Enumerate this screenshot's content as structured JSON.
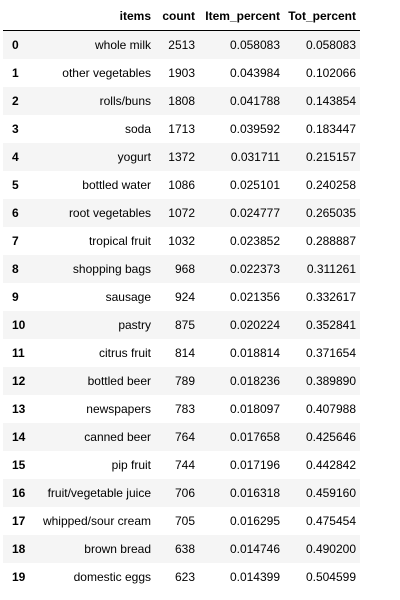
{
  "table": {
    "columns": [
      "",
      "items",
      "count",
      "Item_percent",
      "Tot_percent"
    ],
    "rows": [
      {
        "index": "0",
        "items": "whole milk",
        "count": "2513",
        "item_percent": "0.058083",
        "tot_percent": "0.058083"
      },
      {
        "index": "1",
        "items": "other vegetables",
        "count": "1903",
        "item_percent": "0.043984",
        "tot_percent": "0.102066"
      },
      {
        "index": "2",
        "items": "rolls/buns",
        "count": "1808",
        "item_percent": "0.041788",
        "tot_percent": "0.143854"
      },
      {
        "index": "3",
        "items": "soda",
        "count": "1713",
        "item_percent": "0.039592",
        "tot_percent": "0.183447"
      },
      {
        "index": "4",
        "items": "yogurt",
        "count": "1372",
        "item_percent": "0.031711",
        "tot_percent": "0.215157"
      },
      {
        "index": "5",
        "items": "bottled water",
        "count": "1086",
        "item_percent": "0.025101",
        "tot_percent": "0.240258"
      },
      {
        "index": "6",
        "items": "root vegetables",
        "count": "1072",
        "item_percent": "0.024777",
        "tot_percent": "0.265035"
      },
      {
        "index": "7",
        "items": "tropical fruit",
        "count": "1032",
        "item_percent": "0.023852",
        "tot_percent": "0.288887"
      },
      {
        "index": "8",
        "items": "shopping bags",
        "count": "968",
        "item_percent": "0.022373",
        "tot_percent": "0.311261"
      },
      {
        "index": "9",
        "items": "sausage",
        "count": "924",
        "item_percent": "0.021356",
        "tot_percent": "0.332617"
      },
      {
        "index": "10",
        "items": "pastry",
        "count": "875",
        "item_percent": "0.020224",
        "tot_percent": "0.352841"
      },
      {
        "index": "11",
        "items": "citrus fruit",
        "count": "814",
        "item_percent": "0.018814",
        "tot_percent": "0.371654"
      },
      {
        "index": "12",
        "items": "bottled beer",
        "count": "789",
        "item_percent": "0.018236",
        "tot_percent": "0.389890"
      },
      {
        "index": "13",
        "items": "newspapers",
        "count": "783",
        "item_percent": "0.018097",
        "tot_percent": "0.407988"
      },
      {
        "index": "14",
        "items": "canned beer",
        "count": "764",
        "item_percent": "0.017658",
        "tot_percent": "0.425646"
      },
      {
        "index": "15",
        "items": "pip fruit",
        "count": "744",
        "item_percent": "0.017196",
        "tot_percent": "0.442842"
      },
      {
        "index": "16",
        "items": "fruit/vegetable juice",
        "count": "706",
        "item_percent": "0.016318",
        "tot_percent": "0.459160"
      },
      {
        "index": "17",
        "items": "whipped/sour cream",
        "count": "705",
        "item_percent": "0.016295",
        "tot_percent": "0.475454"
      },
      {
        "index": "18",
        "items": "brown bread",
        "count": "638",
        "item_percent": "0.014746",
        "tot_percent": "0.490200"
      },
      {
        "index": "19",
        "items": "domestic eggs",
        "count": "623",
        "item_percent": "0.014399",
        "tot_percent": "0.504599"
      }
    ]
  }
}
